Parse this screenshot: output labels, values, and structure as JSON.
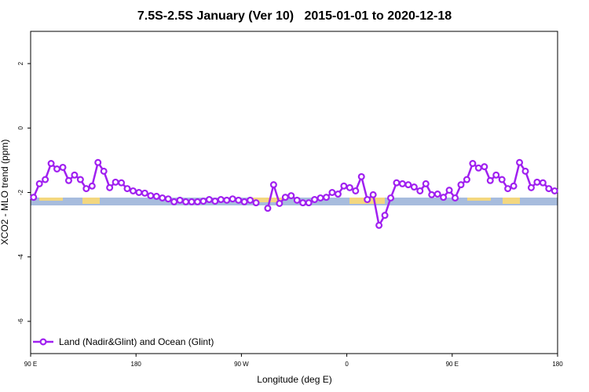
{
  "chart_data": {
    "type": "line",
    "title": "7.5S-2.5S January (Ver 10)   2015-01-01 to 2020-12-18",
    "x_label": "Longitude (deg E)",
    "y_label": "XCO2 - MLO trend (ppm)",
    "xlim": [
      90,
      540
    ],
    "ylim": [
      -7,
      3
    ],
    "xticks": [
      {
        "value": 90,
        "label": "90 E"
      },
      180,
      {
        "value": 270,
        "label": "90 W"
      },
      {
        "value": 360,
        "label": "0"
      },
      {
        "value": 450,
        "label": "90 E"
      },
      {
        "value": 540,
        "label": "180"
      }
    ],
    "yticks": [
      -6,
      -4,
      -2,
      0,
      2
    ],
    "legend": "bottom-left",
    "x": [
      92.5,
      97.5,
      102.5,
      107.5,
      112.5,
      117.5,
      122.5,
      127.5,
      132.5,
      137.5,
      142.5,
      147.5,
      152.5,
      157.5,
      162.5,
      167.5,
      172.5,
      177.5,
      182.5,
      187.5,
      192.5,
      197.5,
      202.5,
      207.5,
      212.5,
      217.5,
      222.5,
      227.5,
      232.5,
      237.5,
      242.5,
      247.5,
      252.5,
      257.5,
      262.5,
      267.5,
      272.5,
      277.5,
      282.5,
      287.5,
      292.5,
      297.5,
      302.5,
      307.5,
      312.5,
      317.5,
      322.5,
      327.5,
      332.5,
      337.5,
      342.5,
      347.5,
      352.5,
      357.5,
      362.5,
      367.5,
      372.5,
      377.5,
      382.5,
      387.5,
      392.5,
      397.5,
      402.5,
      407.5,
      412.5,
      417.5,
      422.5,
      427.5,
      432.5,
      437.5,
      442.5,
      447.5,
      452.5,
      457.5,
      462.5,
      467.5,
      472.5,
      477.5,
      482.5,
      487.5,
      492.5,
      497.5,
      502.5,
      507.5,
      512.5,
      517.5,
      522.5,
      527.5,
      532.5,
      537.5
    ],
    "series": [
      {
        "name": "Land (Nadir&Glint) and Ocean (Glint)",
        "color": "#a020f0",
        "values": [
          -2.15,
          -1.73,
          -1.6,
          -1.1,
          -1.27,
          -1.22,
          -1.63,
          -1.46,
          -1.6,
          -1.88,
          -1.8,
          -1.07,
          -1.34,
          -1.85,
          -1.68,
          -1.7,
          -1.88,
          -1.95,
          -2.0,
          -2.02,
          -2.1,
          -2.12,
          -2.17,
          -2.2,
          -2.29,
          -2.24,
          -2.29,
          -2.29,
          -2.29,
          -2.27,
          -2.22,
          -2.27,
          -2.22,
          -2.24,
          -2.2,
          -2.24,
          -2.29,
          -2.24,
          -2.32,
          null,
          -2.49,
          -1.76,
          -2.34,
          -2.15,
          -2.1,
          -2.24,
          -2.32,
          -2.32,
          -2.22,
          -2.17,
          -2.15,
          -2.0,
          -2.05,
          -1.8,
          -1.85,
          -1.95,
          -1.51,
          -2.22,
          -2.07,
          -3.02,
          -2.71,
          -2.17,
          -1.7,
          -1.73,
          -1.76,
          -1.83,
          -1.95,
          -1.73,
          -2.07,
          -2.05,
          -2.15,
          -1.93,
          -2.17,
          -1.76,
          -1.6,
          -1.1,
          -1.24,
          -1.2,
          -1.63,
          -1.46,
          -1.6,
          -1.88,
          -1.8,
          -1.07,
          -1.34,
          -1.85,
          -1.68,
          -1.7,
          -1.88,
          -1.95
        ]
      }
    ]
  }
}
